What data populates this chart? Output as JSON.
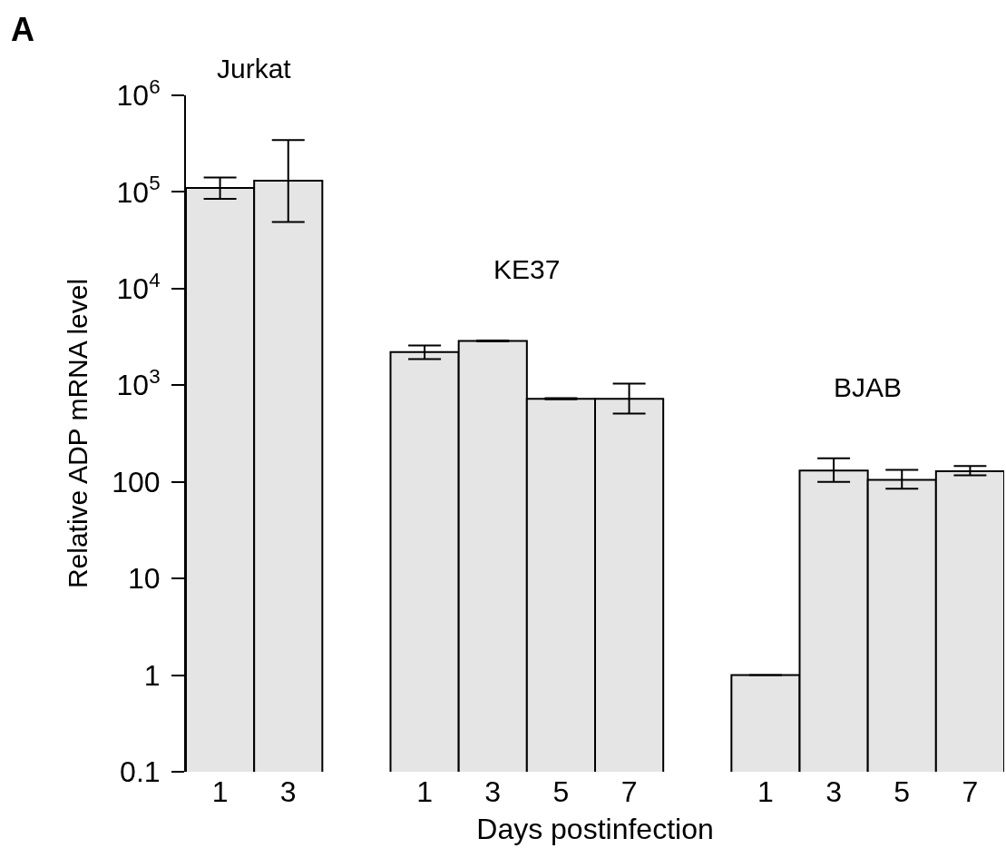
{
  "chart_data": {
    "type": "bar",
    "title": "A",
    "xlabel": "Days postinfection",
    "ylabel": "Relative ADP mRNA level",
    "categories": [
      "1",
      "3",
      null,
      "1",
      "3",
      "5",
      "7",
      null,
      "1",
      "3",
      "5",
      "7"
    ],
    "values": [
      110000,
      131000,
      null,
      2200,
      2870,
      725,
      725,
      null,
      1.0,
      131,
      105,
      129
    ],
    "errors": [
      [
        85000,
        141000
      ],
      [
        49000,
        345000
      ],
      null,
      [
        1860,
        2580
      ],
      [
        2840,
        2900
      ],
      [
        715,
        735
      ],
      [
        508,
        1037
      ],
      null,
      null,
      [
        100,
        175
      ],
      [
        85,
        133
      ],
      [
        117,
        146
      ]
    ],
    "color": "#e5e5e5",
    "log": true,
    "ylim": [
      0.1,
      1000000
    ],
    "yticks": [
      0.1,
      1,
      10,
      100,
      {
        "value": 1000,
        "label": "10$^{3}$"
      },
      {
        "value": 10000,
        "label": "10$^{4}$"
      },
      {
        "value": 100000,
        "label": "10$^{5}$"
      },
      {
        "value": 1000000,
        "label": "10$^{6}$"
      }
    ],
    "grid": false,
    "annotations": [
      "Jurkat",
      "KE37",
      "BJAB"
    ]
  }
}
